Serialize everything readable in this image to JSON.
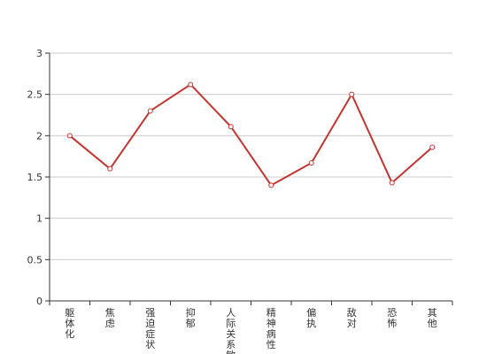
{
  "chart_data": {
    "type": "line",
    "categories": [
      "躯体化",
      "焦虑",
      "强迫症状",
      "抑郁",
      "人际关系敏感",
      "精神病性",
      "偏执",
      "敌对",
      "恐怖",
      "其他"
    ],
    "series": [
      {
        "values": [
          2.0,
          1.6,
          2.3,
          2.62,
          2.11,
          1.4,
          1.67,
          2.5,
          1.43,
          1.86
        ]
      }
    ],
    "y_ticks": [
      "0",
      "0.5",
      "1",
      "1.5",
      "2",
      "2.5",
      "3"
    ],
    "ylim": [
      0,
      3
    ],
    "grid": true,
    "legend": "none",
    "colors": {
      "line": "#c23531",
      "grid": "#cccccc",
      "axis": "#333333"
    }
  }
}
